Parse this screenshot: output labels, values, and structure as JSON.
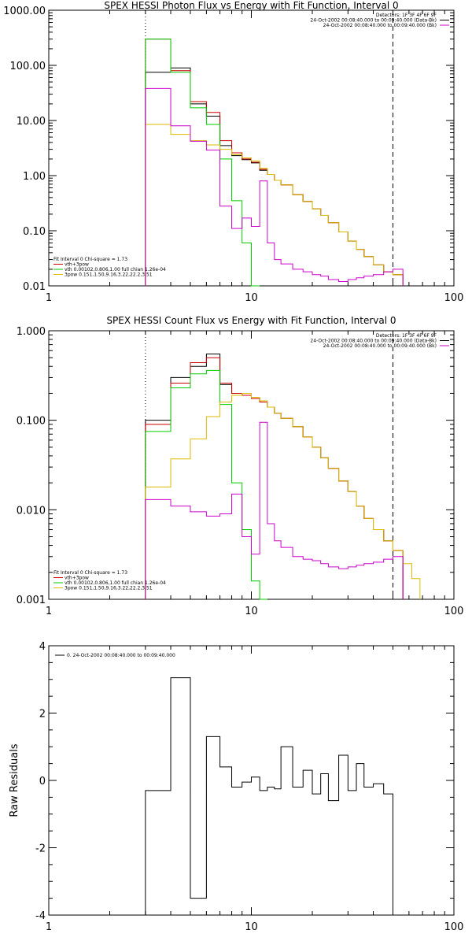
{
  "chart_data": [
    {
      "type": "line",
      "title": "SPEX HESSI Photon Flux vs Energy with Fit Function, Interval 0",
      "xscale": "log",
      "yscale": "log",
      "xlim": [
        1,
        100
      ],
      "ylim": [
        0.01,
        1000
      ],
      "xticks": [
        1,
        10,
        100
      ],
      "xtick_labels": [
        "1",
        "10",
        "100"
      ],
      "yticks": [
        0.01,
        0.1,
        1,
        10,
        100,
        1000
      ],
      "ytick_labels": [
        "0.01",
        "0.10",
        "1.00",
        "10.00",
        "100.00",
        "1000.00"
      ],
      "xlabel": "",
      "ylabel": "",
      "vlines": [
        {
          "x": 3,
          "style": "dotted"
        },
        {
          "x": 50,
          "style": "dashed"
        }
      ],
      "legend_topright": [
        "Detectors: 1F 3F 4F 6F 9F",
        "24-Oct-2002 00:08:40.000 to 00:09:40.000 (Data-Bk)",
        "24-Oct-2002 00:08:40.000 to 00:09:40.000 (Bk)"
      ],
      "legend_bottomleft": [
        "Fit Interval 0   Chi-square = 1.73",
        "vth+3pow",
        "vth 0.00102,0.806,1.00  full chian 1.26e-04",
        "3pow 0.151,1.50,9.16,3.22,22.2,3.51"
      ],
      "edges": [
        3,
        4,
        5,
        6,
        7,
        8,
        9,
        10,
        11,
        12,
        13,
        14,
        16,
        18,
        20,
        22,
        24,
        27,
        30,
        33,
        36,
        40,
        45,
        50,
        56
      ],
      "series": [
        {
          "key": "data",
          "color": "#000000",
          "values": [
            75,
            90,
            20,
            12,
            3.5,
            2.3,
            1.95,
            1.7,
            1.25,
            1.05,
            0.82,
            0.68,
            0.45,
            0.34,
            0.25,
            0.19,
            0.14,
            0.095,
            0.065,
            0.046,
            0.034,
            0.024,
            0.018,
            0.016
          ]
        },
        {
          "key": "total",
          "color": "#cc0000",
          "values": [
            300,
            80,
            22,
            14,
            4.3,
            2.6,
            2.0,
            1.75,
            1.3,
            1.05,
            0.82,
            0.68,
            0.45,
            0.34,
            0.25,
            0.19,
            0.14,
            0.095,
            0.065,
            0.046,
            0.034,
            0.024,
            0.018,
            0.016
          ]
        },
        {
          "key": "vth",
          "color": "#00cc00",
          "values": [
            300,
            75,
            17,
            8.5,
            2.0,
            0.35,
            0.06,
            0.01
          ]
        },
        {
          "key": "3pow",
          "color": "#ddbb00",
          "values": [
            8.5,
            5.6,
            4.3,
            3.6,
            3.0,
            2.4,
            2.1,
            1.85,
            1.35,
            1.05,
            0.82,
            0.68,
            0.45,
            0.34,
            0.25,
            0.19,
            0.14,
            0.095,
            0.065,
            0.046,
            0.034,
            0.024,
            0.018,
            0.016,
            0.01
          ]
        },
        {
          "key": "bk",
          "color": "#cc00cc",
          "values": [
            38,
            8,
            4.2,
            2.9,
            0.28,
            0.11,
            0.17,
            0.12,
            0.8,
            0.06,
            0.03,
            0.025,
            0.02,
            0.018,
            0.016,
            0.015,
            0.013,
            0.012,
            0.013,
            0.014,
            0.015,
            0.016,
            0.018,
            0.02
          ]
        }
      ]
    },
    {
      "type": "line",
      "title": "SPEX HESSI Count Flux vs Energy with Fit Function, Interval 0",
      "xscale": "log",
      "yscale": "log",
      "xlim": [
        1,
        100
      ],
      "ylim": [
        0.001,
        1
      ],
      "xticks": [
        1,
        10,
        100
      ],
      "xtick_labels": [
        "1",
        "10",
        "100"
      ],
      "yticks": [
        0.001,
        0.01,
        0.1,
        1
      ],
      "ytick_labels": [
        "0.001",
        "0.010",
        "0.100",
        "1.000"
      ],
      "xlabel": "",
      "ylabel": "",
      "vlines": [
        {
          "x": 3,
          "style": "dotted"
        },
        {
          "x": 50,
          "style": "dashed"
        }
      ],
      "legend_topright": [
        "Detectors: 1F 3F 4F 6F 9F",
        "24-Oct-2002 00:08:40.000 to 00:09:40.000 (Data-Bk)",
        "24-Oct-2002 00:08:40.000 to 00:09:40.000 (Bk)"
      ],
      "legend_bottomleft": [
        "Fit Interval 0   Chi-square = 1.73",
        "vth+3pow",
        "vth 0.00102,0.806,1.00  full chian 1.26e-04",
        "3pow 0.151,1.50,9.16,3.22,22.2,3.51"
      ],
      "edges": [
        3,
        4,
        5,
        6,
        7,
        8,
        9,
        10,
        11,
        12,
        13,
        14,
        16,
        18,
        20,
        22,
        24,
        27,
        30,
        33,
        36,
        40,
        45,
        50,
        56,
        62,
        68
      ],
      "series": [
        {
          "key": "data",
          "color": "#000000",
          "values": [
            0.1,
            0.3,
            0.4,
            0.55,
            0.25,
            0.2,
            0.19,
            0.175,
            0.16,
            0.14,
            0.12,
            0.105,
            0.085,
            0.065,
            0.05,
            0.038,
            0.029,
            0.021,
            0.016,
            0.011,
            0.008,
            0.006,
            0.0045,
            0.0035
          ]
        },
        {
          "key": "total",
          "color": "#cc0000",
          "values": [
            0.09,
            0.26,
            0.44,
            0.5,
            0.26,
            0.2,
            0.19,
            0.175,
            0.16,
            0.14,
            0.12,
            0.105,
            0.085,
            0.065,
            0.05,
            0.038,
            0.029,
            0.021,
            0.016,
            0.011,
            0.008,
            0.006,
            0.0045,
            0.0035
          ]
        },
        {
          "key": "vth",
          "color": "#00cc00",
          "values": [
            0.075,
            0.23,
            0.33,
            0.36,
            0.15,
            0.02,
            0.006,
            0.0016,
            0.001
          ]
        },
        {
          "key": "3pow",
          "color": "#ddbb00",
          "values": [
            0.018,
            0.037,
            0.062,
            0.11,
            0.16,
            0.19,
            0.2,
            0.18,
            0.165,
            0.14,
            0.12,
            0.105,
            0.085,
            0.065,
            0.05,
            0.038,
            0.029,
            0.021,
            0.016,
            0.011,
            0.008,
            0.006,
            0.0045,
            0.0035,
            0.0025,
            0.0017
          ]
        },
        {
          "key": "bk",
          "color": "#cc00cc",
          "values": [
            0.013,
            0.011,
            0.0095,
            0.0085,
            0.009,
            0.015,
            0.005,
            0.0032,
            0.095,
            0.007,
            0.0045,
            0.0038,
            0.003,
            0.0028,
            0.0027,
            0.0025,
            0.0023,
            0.0022,
            0.0023,
            0.0024,
            0.0025,
            0.0026,
            0.0028,
            0.003
          ]
        }
      ]
    },
    {
      "type": "line",
      "title": "",
      "xscale": "log",
      "yscale": "linear",
      "xlim": [
        1,
        100
      ],
      "ylim": [
        -4,
        4
      ],
      "xticks": [
        1,
        10,
        100
      ],
      "xtick_labels": [
        "1",
        "10",
        "100"
      ],
      "yticks": [
        -4,
        -2,
        0,
        2,
        4
      ],
      "ytick_labels": [
        "-4",
        "-2",
        "0",
        "2",
        "4"
      ],
      "xlabel": "",
      "ylabel": "Raw Residuals",
      "legend_topleft": "0. 24-Oct-2002 00:08:40.000 to 00:09:40.000",
      "edges": [
        3,
        4,
        5,
        6,
        7,
        8,
        9,
        10,
        11,
        12,
        13,
        14,
        16,
        18,
        20,
        22,
        24,
        27,
        30,
        33,
        36,
        40,
        45,
        50
      ],
      "series": [
        {
          "key": "residuals",
          "color": "#000000",
          "values": [
            -0.3,
            3.05,
            -3.5,
            1.3,
            0.4,
            -0.2,
            -0.05,
            0.1,
            -0.3,
            -0.2,
            -0.25,
            1.0,
            -0.2,
            0.3,
            -0.4,
            0.2,
            -0.6,
            0.75,
            -0.3,
            0.5,
            -0.2,
            -0.1,
            -0.4
          ]
        }
      ]
    }
  ]
}
